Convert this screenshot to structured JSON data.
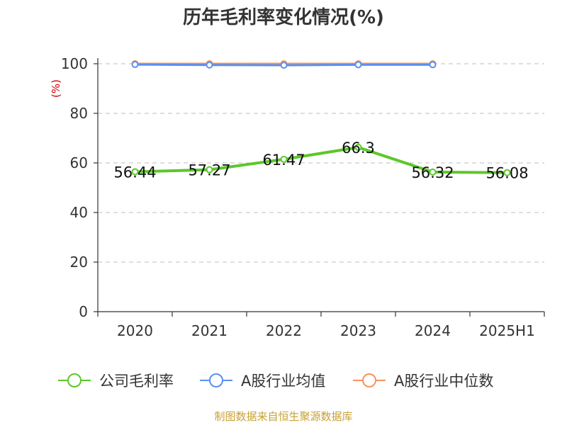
{
  "chart_data": {
    "type": "line",
    "title": "历年毛利率变化情况(%)",
    "ylabel": "(%)",
    "xlabel": "",
    "ylim": [
      0,
      100
    ],
    "yticks": [
      0,
      20,
      40,
      60,
      80,
      100
    ],
    "grid": true,
    "legend_position": "bottom",
    "categories": [
      "2020",
      "2021",
      "2022",
      "2023",
      "2024",
      "2025H1"
    ],
    "series": [
      {
        "name": "公司毛利率",
        "color": "#5cc72a",
        "values": [
          56.44,
          57.27,
          61.47,
          66.3,
          56.32,
          56.08
        ],
        "labels": [
          "56.44",
          "57.27",
          "61.47",
          "66.3",
          "56.32",
          "56.08"
        ],
        "show_labels": true
      },
      {
        "name": "A股行业均值",
        "color": "#5b8ff0",
        "values": [
          99.7,
          99.5,
          99.4,
          99.6,
          99.6,
          null
        ],
        "show_labels": false
      },
      {
        "name": "A股行业中位数",
        "color": "#f7945c",
        "values": [
          100,
          100,
          100,
          100,
          100,
          null
        ],
        "show_labels": false
      }
    ]
  },
  "source_text": "制图数据来自恒生聚源数据库"
}
